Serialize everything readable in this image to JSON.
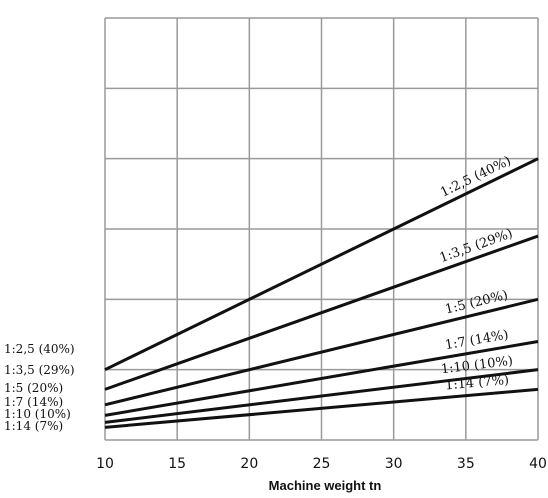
{
  "chart_data": {
    "type": "line",
    "xlabel": "Machine weight tn",
    "ylabel": "",
    "title": "",
    "xlim": [
      10,
      40
    ],
    "x_ticks": [
      10,
      15,
      20,
      25,
      30,
      35,
      40
    ],
    "ylim": [
      0,
      6
    ],
    "grid": true,
    "series": [
      {
        "name": "1:2,5 (40%)",
        "x": [
          10,
          40
        ],
        "y": [
          1.0,
          4.0
        ],
        "line_label": "1:2,5 (40%)",
        "left_label": "1:2,5 (40%)"
      },
      {
        "name": "1:3,5 (29%)",
        "x": [
          10,
          40
        ],
        "y": [
          0.72,
          2.9
        ],
        "line_label": "1:3,5 (29%)",
        "left_label": "1:3,5 (29%)"
      },
      {
        "name": "1:5 (20%)",
        "x": [
          10,
          40
        ],
        "y": [
          0.5,
          2.0
        ],
        "line_label": "1:5 (20%)",
        "left_label": "1:5 (20%)"
      },
      {
        "name": "1:7 (14%)",
        "x": [
          10,
          40
        ],
        "y": [
          0.35,
          1.4
        ],
        "line_label": "1:7 (14%)",
        "left_label": "1:7 (14%)"
      },
      {
        "name": "1:10 (10%)",
        "x": [
          10,
          40
        ],
        "y": [
          0.25,
          1.0
        ],
        "line_label": "1:10 (10%)",
        "left_label": "1:10 (10%)"
      },
      {
        "name": "1:14 (7%)",
        "x": [
          10,
          40
        ],
        "y": [
          0.18,
          0.72
        ],
        "line_label": "1:14 (7%)",
        "left_label": "1:14 (7%)"
      }
    ]
  }
}
